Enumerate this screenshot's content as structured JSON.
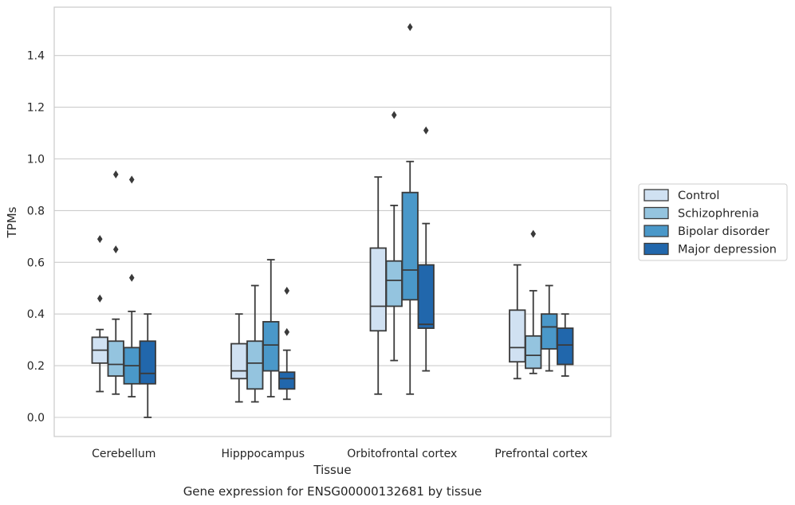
{
  "chart_data": {
    "type": "box",
    "caption": "Gene expression for ENSG00000132681 by tissue",
    "xlabel": "Tissue",
    "ylabel": "TPMs",
    "ylim": [
      -0.07,
      1.59
    ],
    "yticks": [
      "0.0",
      "0.2",
      "0.4",
      "0.6",
      "0.8",
      "1.0",
      "1.2",
      "1.4"
    ],
    "grid": "horizontal",
    "legend_position": "right",
    "categories": [
      "Cerebellum",
      "Hipppocampus",
      "Orbitofrontal cortex",
      "Prefrontal cortex"
    ],
    "series": [
      {
        "name": "Control",
        "color": "#d0e1f2",
        "boxes": [
          {
            "whislo": 0.1,
            "q1": 0.21,
            "med": 0.26,
            "q3": 0.31,
            "whishi": 0.34,
            "fliers": [
              0.46,
              0.69
            ]
          },
          {
            "whislo": 0.06,
            "q1": 0.15,
            "med": 0.18,
            "q3": 0.285,
            "whishi": 0.4,
            "fliers": []
          },
          {
            "whislo": 0.09,
            "q1": 0.335,
            "med": 0.43,
            "q3": 0.655,
            "whishi": 0.93,
            "fliers": []
          },
          {
            "whislo": 0.15,
            "q1": 0.215,
            "med": 0.27,
            "q3": 0.415,
            "whishi": 0.59,
            "fliers": []
          }
        ]
      },
      {
        "name": "Schizophrenia",
        "color": "#94c4df",
        "boxes": [
          {
            "whislo": 0.09,
            "q1": 0.16,
            "med": 0.205,
            "q3": 0.295,
            "whishi": 0.38,
            "fliers": [
              0.65,
              0.94
            ]
          },
          {
            "whislo": 0.06,
            "q1": 0.11,
            "med": 0.21,
            "q3": 0.295,
            "whishi": 0.51,
            "fliers": []
          },
          {
            "whislo": 0.22,
            "q1": 0.43,
            "med": 0.53,
            "q3": 0.605,
            "whishi": 0.82,
            "fliers": [
              1.17
            ]
          },
          {
            "whislo": 0.17,
            "q1": 0.19,
            "med": 0.24,
            "q3": 0.315,
            "whishi": 0.49,
            "fliers": [
              0.71
            ]
          }
        ]
      },
      {
        "name": "Bipolar disorder",
        "color": "#4a98c9",
        "boxes": [
          {
            "whislo": 0.08,
            "q1": 0.13,
            "med": 0.2,
            "q3": 0.27,
            "whishi": 0.41,
            "fliers": [
              0.54,
              0.92
            ]
          },
          {
            "whislo": 0.08,
            "q1": 0.18,
            "med": 0.28,
            "q3": 0.37,
            "whishi": 0.61,
            "fliers": []
          },
          {
            "whislo": 0.09,
            "q1": 0.455,
            "med": 0.57,
            "q3": 0.87,
            "whishi": 0.99,
            "fliers": [
              1.51
            ]
          },
          {
            "whislo": 0.18,
            "q1": 0.265,
            "med": 0.35,
            "q3": 0.4,
            "whishi": 0.51,
            "fliers": []
          }
        ]
      },
      {
        "name": "Major depression",
        "color": "#2167ac",
        "boxes": [
          {
            "whislo": 0.0,
            "q1": 0.13,
            "med": 0.17,
            "q3": 0.295,
            "whishi": 0.4,
            "fliers": []
          },
          {
            "whislo": 0.07,
            "q1": 0.11,
            "med": 0.15,
            "q3": 0.175,
            "whishi": 0.26,
            "fliers": [
              0.33,
              0.49
            ]
          },
          {
            "whislo": 0.18,
            "q1": 0.345,
            "med": 0.36,
            "q3": 0.59,
            "whishi": 0.75,
            "fliers": [
              1.11
            ]
          },
          {
            "whislo": 0.16,
            "q1": 0.205,
            "med": 0.28,
            "q3": 0.345,
            "whishi": 0.4,
            "fliers": []
          }
        ]
      }
    ]
  }
}
